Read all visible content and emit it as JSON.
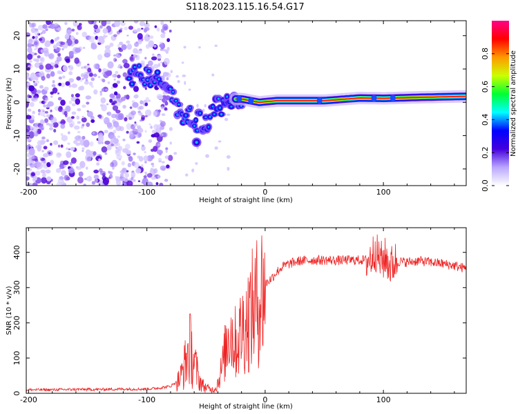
{
  "figure": {
    "title": "S118.2023.115.16.54.G17"
  },
  "chart_data": [
    {
      "type": "heatmap",
      "name": "spectrogram",
      "xlabel": "Height of straight line (km)",
      "ylabel": "Frequency (Hz)",
      "xlim": [
        -202,
        170
      ],
      "ylim": [
        -25,
        24.5
      ],
      "x_ticks": [
        -200,
        -100,
        0,
        100
      ],
      "y_ticks": [
        -20,
        -10,
        0,
        10,
        20
      ],
      "colorbar": {
        "label": "Normalized spectral amplitude",
        "range": [
          0,
          1
        ],
        "ticks": [
          0.0,
          0.2,
          0.4,
          0.6,
          0.8
        ],
        "tick_labels": [
          "0.0",
          "0.2",
          "0.4",
          "0.6",
          "0.8"
        ],
        "colormap": [
          "#ffffff",
          "#b9a6ff",
          "#4400dd",
          "#0000ff",
          "#00ffff",
          "#00ff33",
          "#ccff00",
          "#ff9900",
          "#ff0000",
          "#ff0088"
        ]
      },
      "features": {
        "noise_region_x": [
          -202,
          -90
        ],
        "signal_track": [
          {
            "x": -115,
            "f": 8
          },
          {
            "x": -100,
            "f": 8
          },
          {
            "x": -90,
            "f": 7
          },
          {
            "x": -80,
            "f": 2
          },
          {
            "x": -72,
            "f": -3
          },
          {
            "x": -60,
            "f": -5
          },
          {
            "x": -50,
            "f": -7
          },
          {
            "x": -42,
            "f": -2
          },
          {
            "x": -30,
            "f": 1
          },
          {
            "x": -20,
            "f": 1
          },
          {
            "x": -5,
            "f": 0
          },
          {
            "x": 10,
            "f": 0.5
          },
          {
            "x": 50,
            "f": 0.5
          },
          {
            "x": 80,
            "f": 1.3
          },
          {
            "x": 100,
            "f": 1.2
          },
          {
            "x": 130,
            "f": 1.5
          },
          {
            "x": 170,
            "f": 1.8
          }
        ],
        "side_blob": {
          "x": -58,
          "f": -12
        }
      }
    },
    {
      "type": "line",
      "name": "snr",
      "xlabel": "Height of straight line (km)",
      "ylabel": "SNR (10 * v/v)",
      "xlim": [
        -202,
        170
      ],
      "ylim": [
        0,
        470
      ],
      "x_ticks": [
        -200,
        -100,
        0,
        100
      ],
      "y_ticks": [
        0,
        100,
        200,
        300,
        400
      ],
      "color": "#ee2222",
      "series": [
        {
          "name": "SNR",
          "x": [
            -202,
            -180,
            -160,
            -140,
            -120,
            -100,
            -90,
            -80,
            -72,
            -67,
            -64,
            -60,
            -56,
            -52,
            -47,
            -43,
            -40,
            -36,
            -33,
            -30,
            -27,
            -24,
            -20,
            -16,
            -12,
            -8,
            -4,
            0,
            5,
            10,
            15,
            20,
            25,
            30,
            40,
            50,
            60,
            70,
            80,
            86,
            90,
            93,
            95,
            98,
            102,
            106,
            110,
            120,
            130,
            140,
            150,
            160,
            170
          ],
          "y": [
            10,
            10,
            11,
            11,
            12,
            12,
            15,
            20,
            40,
            90,
            130,
            90,
            40,
            20,
            12,
            10,
            30,
            80,
            130,
            190,
            150,
            140,
            180,
            200,
            230,
            250,
            280,
            310,
            325,
            345,
            360,
            367,
            372,
            376,
            378,
            378,
            377,
            378,
            378,
            378,
            385,
            410,
            390,
            375,
            385,
            360,
            375,
            372,
            376,
            372,
            368,
            362,
            354
          ]
        }
      ]
    }
  ]
}
